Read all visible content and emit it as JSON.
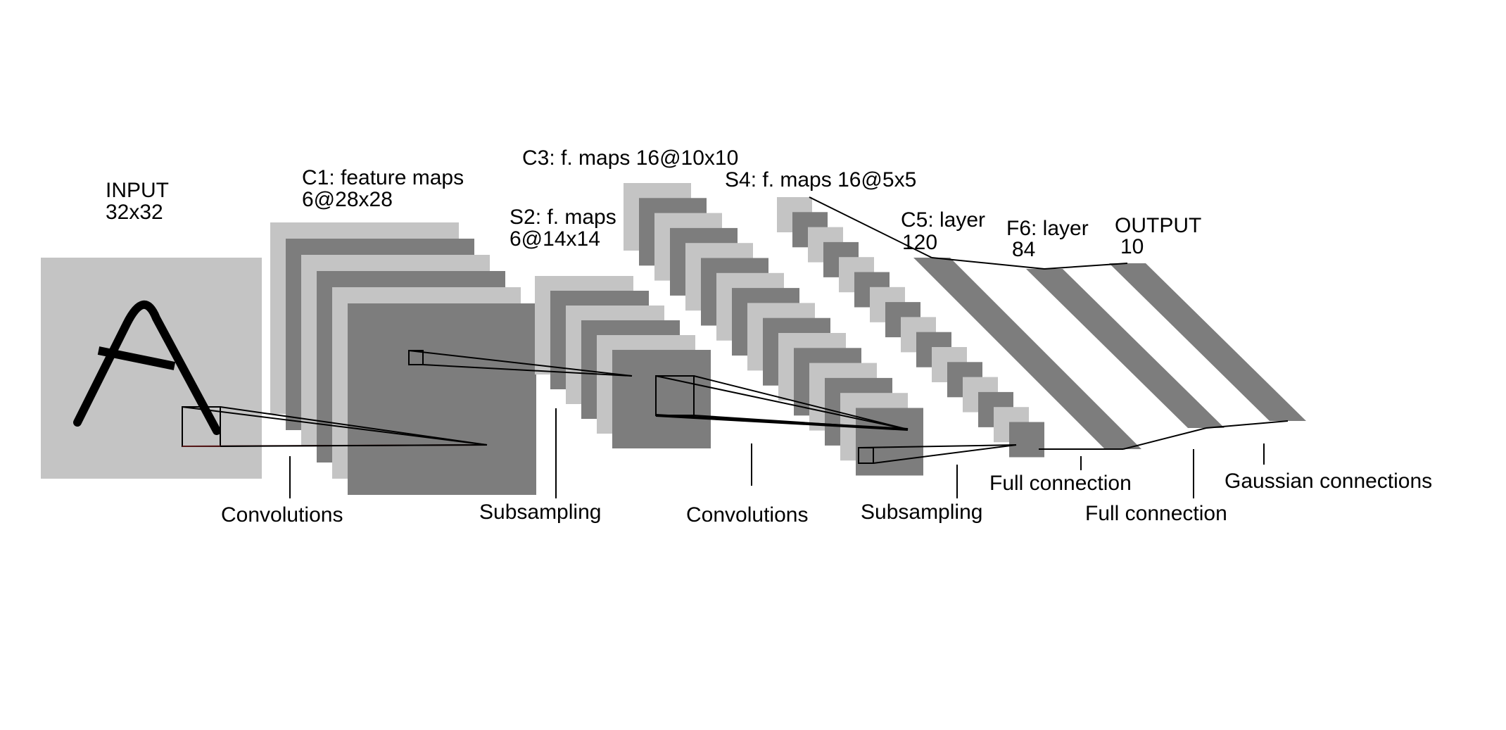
{
  "diagram": {
    "colors": {
      "light": "#c4c4c4",
      "dark": "#7d7d7d",
      "line": "#000000",
      "background": "#ffffff"
    },
    "input": {
      "title": "INPUT",
      "size": "32x32",
      "glyph": "A"
    },
    "c1": {
      "title": "C1: feature maps",
      "size": "6@28x28",
      "map_count": 6
    },
    "s2": {
      "title": "S2: f. maps",
      "size": "6@14x14",
      "map_count": 6
    },
    "c3": {
      "title": "C3: f. maps 16@10x10",
      "map_count": 16
    },
    "s4": {
      "title": "S4: f. maps 16@5x5",
      "map_count": 16
    },
    "c5": {
      "title": "C5: layer",
      "size": "120"
    },
    "f6": {
      "title": "F6: layer",
      "size": "84"
    },
    "output": {
      "title": "OUTPUT",
      "size": "10"
    },
    "operations": {
      "convolutions_1": "Convolutions",
      "subsampling_1": "Subsampling",
      "convolutions_2": "Convolutions",
      "subsampling_2": "Subsampling",
      "full_connection_1": "Full connection",
      "full_connection_2": "Full connection",
      "gaussian_connections": "Gaussian connections"
    }
  }
}
